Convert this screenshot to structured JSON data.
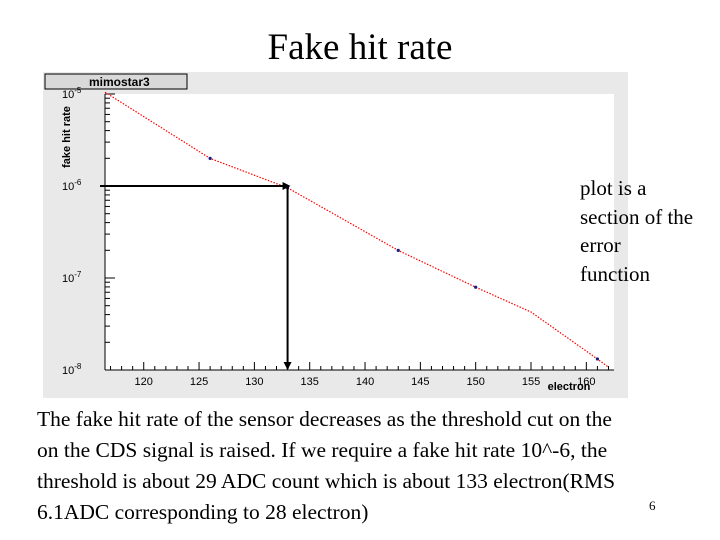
{
  "slide": {
    "title": "Fake hit rate",
    "side_note": [
      "plot is a",
      "section of the",
      "error",
      "function"
    ],
    "body_lines": [
      "The fake hit rate of the sensor decreases as the threshold cut on the",
      "on the CDS signal is raised. If we require a fake hit rate 10^-6, the",
      "threshold is about 29 ADC count which is about 133 electron(RMS",
      "6.1ADC corresponding to 28 electron)"
    ],
    "page_number": "6"
  },
  "chart_data": {
    "type": "line",
    "title": "mimostar3",
    "xlabel": "electron",
    "ylabel": "fake hit rate",
    "xlim": [
      116.5,
      162.5
    ],
    "ylim_log10": [
      -8,
      -5
    ],
    "y_scale": "log",
    "x_ticks": [
      120,
      125,
      130,
      135,
      140,
      145,
      150,
      155,
      160
    ],
    "y_ticks": [
      {
        "value": -5,
        "base": "10",
        "exp": "-5"
      },
      {
        "value": -6,
        "base": "10",
        "exp": "-6"
      },
      {
        "value": -7,
        "base": "10",
        "exp": "-7"
      },
      {
        "value": -8,
        "base": "10",
        "exp": "-8"
      }
    ],
    "series": [
      {
        "color": "#ff0000",
        "marker_color": "#1a1a80",
        "x": [
          116.5,
          126.0,
          133.0,
          143.0,
          150.0,
          155.0,
          161.0,
          162.0
        ],
        "log10_y": [
          -4.98,
          -5.7,
          -6.02,
          -6.7,
          -7.1,
          -7.37,
          -7.88,
          -7.97
        ]
      }
    ],
    "markers": [
      {
        "x": 126.0,
        "log10_y": -5.7
      },
      {
        "x": 133.0,
        "log10_y": -6.02
      },
      {
        "x": 143.0,
        "log10_y": -6.7
      },
      {
        "x": 150.0,
        "log10_y": -7.1
      },
      {
        "x": 161.0,
        "log10_y": -7.88
      }
    ],
    "annotation": {
      "x": 133,
      "log10_y": -6,
      "description_arrows": true
    },
    "grid": false,
    "colors": {
      "frame_bg": "#e9e9e9",
      "title_box_bg": "#d9d9d9",
      "curve": "#ff0000",
      "arrow": "#000000"
    }
  }
}
